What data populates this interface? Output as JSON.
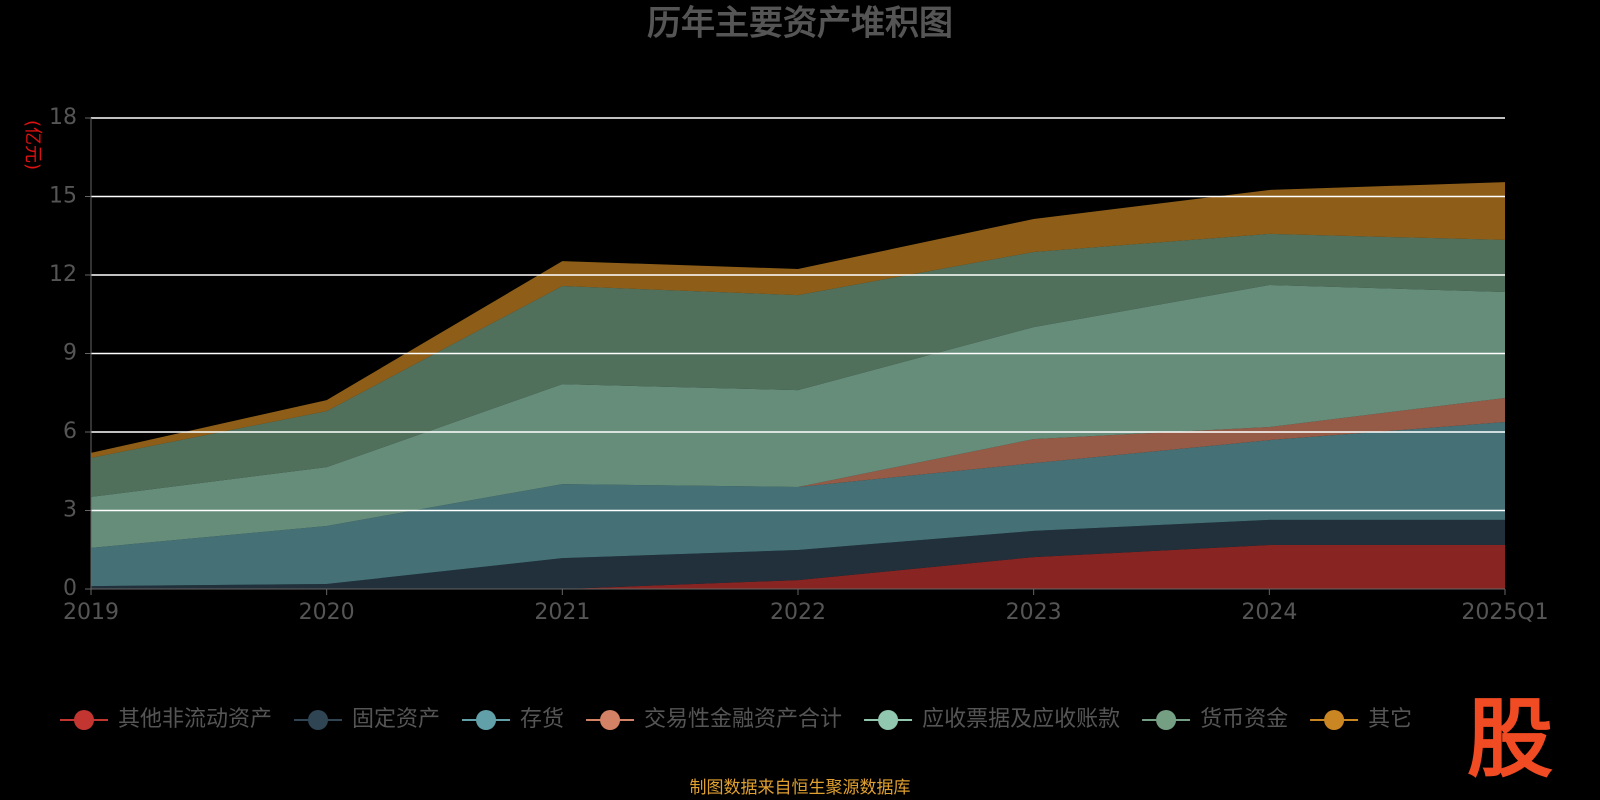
{
  "chart_data": {
    "type": "stacked_area",
    "title": "历年主要资产堆积图",
    "y_label": "(亿元)",
    "categories": [
      "2019",
      "2020",
      "2021",
      "2022",
      "2023",
      "2024",
      "2025Q1"
    ],
    "series": [
      {
        "name": "其他非流动资产",
        "color": "#c23531",
        "values": [
          0,
          0,
          0,
          0.34,
          1.22,
          1.68,
          1.68
        ]
      },
      {
        "name": "固定资产",
        "color": "#2f4554",
        "values": [
          0.11,
          0.19,
          1.18,
          1.15,
          1.0,
          0.96,
          0.96
        ]
      },
      {
        "name": "存货",
        "color": "#61a0a8",
        "values": [
          1.46,
          2.22,
          2.83,
          2.41,
          2.59,
          3.05,
          3.74
        ]
      },
      {
        "name": "交易性金融资产合计",
        "color": "#d48265",
        "values": [
          0,
          0,
          0,
          0,
          0.92,
          0.5,
          0.92
        ]
      },
      {
        "name": "应收票据及应收账款",
        "color": "#91c7ae",
        "values": [
          1.95,
          2.25,
          3.82,
          3.7,
          4.28,
          5.43,
          4.05
        ]
      },
      {
        "name": "货币资金",
        "color": "#749f83",
        "values": [
          1.49,
          2.14,
          3.75,
          3.63,
          2.87,
          1.95,
          1.99
        ]
      },
      {
        "name": "其它",
        "color": "#ca8622",
        "values": [
          0.19,
          0.42,
          0.95,
          1.0,
          1.26,
          1.68,
          2.21
        ]
      }
    ],
    "ylim": [
      0,
      18
    ],
    "yticks": [
      0,
      3,
      6,
      9,
      12,
      15,
      18
    ],
    "grid": true,
    "source": "制图数据来自恒生聚源数据库",
    "logo": "股"
  }
}
